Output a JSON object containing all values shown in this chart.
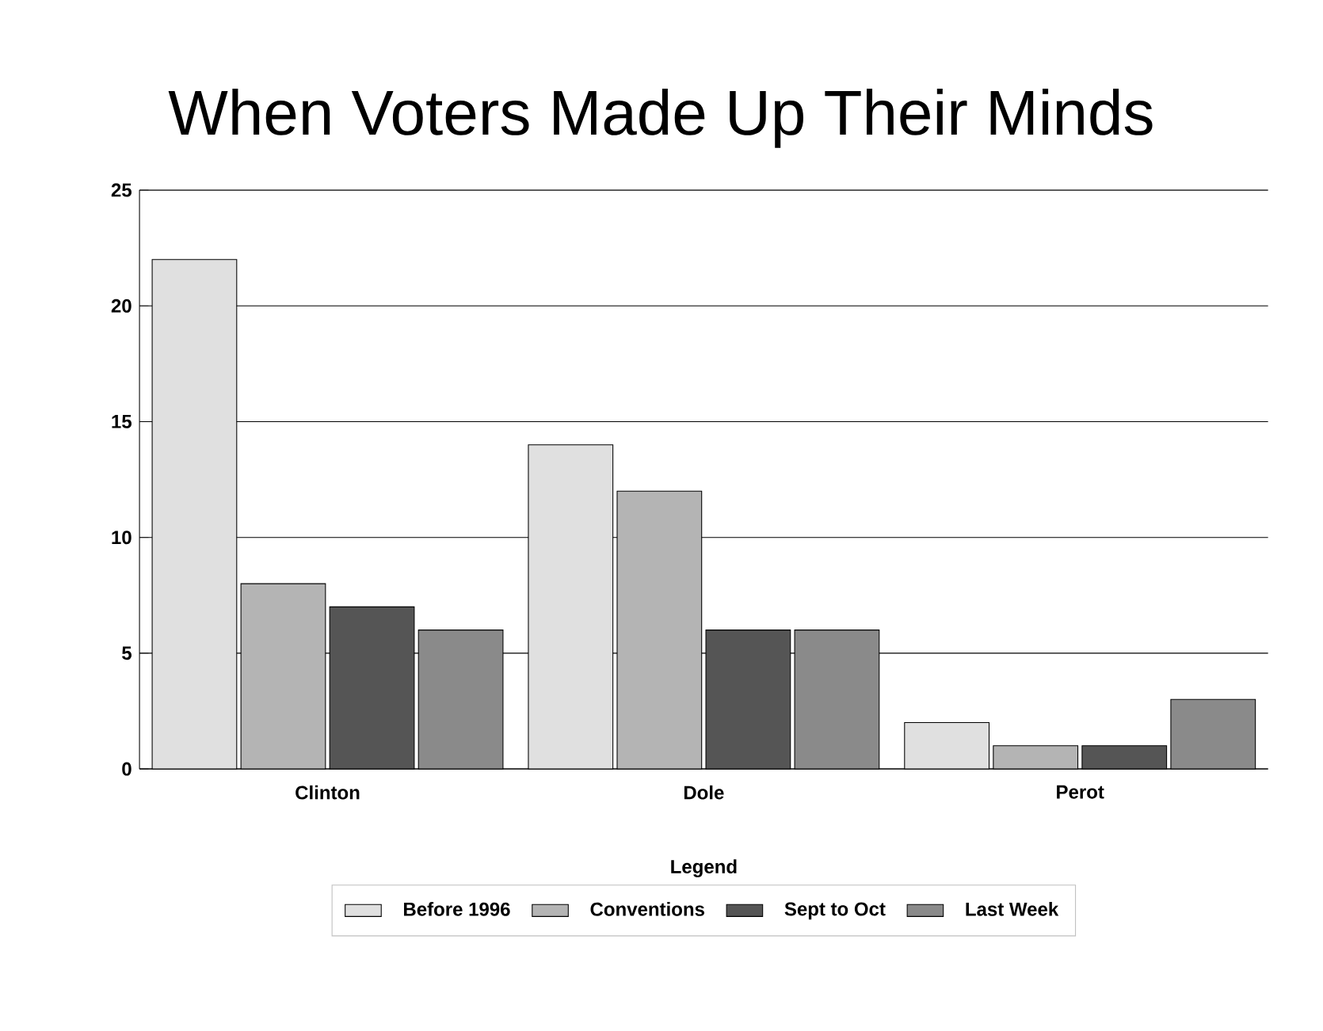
{
  "chart_data": {
    "type": "bar",
    "title": "When Voters Made Up Their Minds",
    "categories": [
      "Clinton",
      "Dole",
      "Perot"
    ],
    "series": [
      {
        "name": "Before 1996",
        "color": "#e0e0e0",
        "values": [
          22,
          14,
          2
        ]
      },
      {
        "name": "Conventions",
        "color": "#b4b4b4",
        "values": [
          8,
          12,
          1
        ]
      },
      {
        "name": "Sept to Oct",
        "color": "#555555",
        "values": [
          7,
          6,
          1
        ]
      },
      {
        "name": "Last Week",
        "color": "#8a8a8a",
        "values": [
          6,
          6,
          3
        ]
      }
    ],
    "legend_title": "Legend",
    "legend": "bottom",
    "ylim": [
      0,
      25
    ],
    "yticks": [
      0,
      5,
      10,
      15,
      20,
      25
    ],
    "grid": "y"
  }
}
